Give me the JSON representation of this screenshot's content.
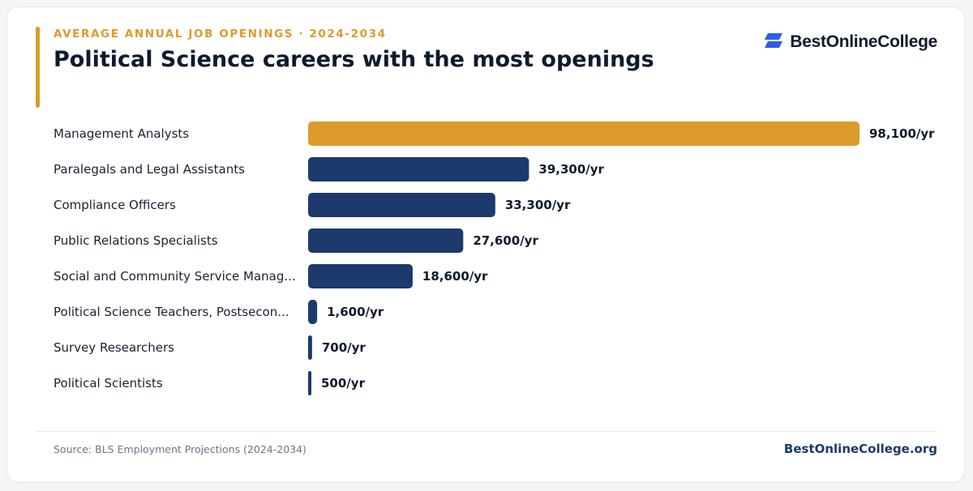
{
  "header": {
    "eyebrow": "AVERAGE ANNUAL JOB OPENINGS · 2024-2034",
    "title": "Political Science careers with the most openings"
  },
  "brand": {
    "name": "BestOnlineCollege",
    "icon": "brand-logo-icon"
  },
  "colors": {
    "accent": "#dc9b2a",
    "bar_primary": "#1c3a6b",
    "bar_highlight": "#dc9b2a",
    "title": "#0e1a2e"
  },
  "chart_data": {
    "type": "bar",
    "orientation": "horizontal",
    "title": "Political Science careers with the most openings",
    "subtitle": "AVERAGE ANNUAL JOB OPENINGS · 2024-2034",
    "categories": [
      "Management Analysts",
      "Paralegals and Legal Assistants",
      "Compliance Officers",
      "Public Relations Specialists",
      "Social and Community Service Manag...",
      "Political Science Teachers, Postsecon...",
      "Survey Researchers",
      "Political Scientists"
    ],
    "values": [
      98100,
      39300,
      33300,
      27600,
      18600,
      1600,
      700,
      500
    ],
    "value_labels": [
      "98,100/yr",
      "39,300/yr",
      "33,300/yr",
      "27,600/yr",
      "18,600/yr",
      "1,600/yr",
      "700/yr",
      "500/yr"
    ],
    "highlight_index": 0,
    "xlim": [
      0,
      98100
    ],
    "grid": false,
    "xlabel": "",
    "ylabel": ""
  },
  "footer": {
    "source": "Source: BLS Employment Projections (2024-2034)",
    "site": "BestOnlineCollege.org"
  }
}
